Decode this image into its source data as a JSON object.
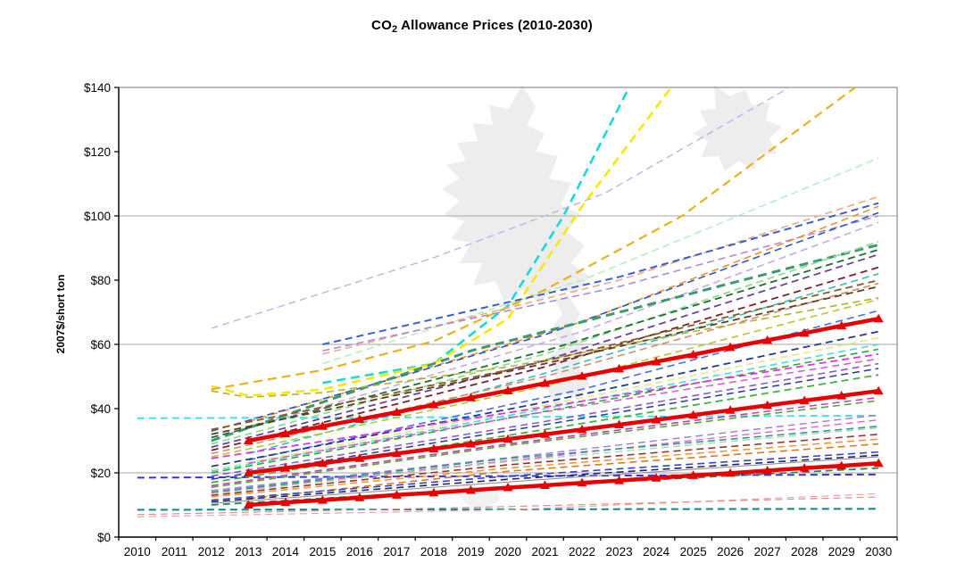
{
  "page": {
    "top_band_color": "#F1F0EA",
    "background": "#FFFFFF"
  },
  "chart_data": {
    "type": "line",
    "title": "CO2 Allowance Prices (2010-2030)",
    "title_parts": {
      "pre": "CO",
      "sub": "2",
      "post": " Allowance Prices (2010-2030)"
    },
    "ylabel": "2007$/short ton",
    "xlabel": "",
    "ylim": [
      0,
      140
    ],
    "y_ticks": [
      {
        "label": "$0",
        "value": 0
      },
      {
        "label": "$20",
        "value": 20
      },
      {
        "label": "$40",
        "value": 40
      },
      {
        "label": "$60",
        "value": 60
      },
      {
        "label": "$80",
        "value": 80
      },
      {
        "label": "$100",
        "value": 100
      },
      {
        "label": "$120",
        "value": 120
      },
      {
        "label": "$140",
        "value": 140
      }
    ],
    "x_ticks": [
      2010,
      2011,
      2012,
      2013,
      2014,
      2015,
      2016,
      2017,
      2018,
      2019,
      2020,
      2021,
      2022,
      2023,
      2024,
      2025,
      2026,
      2027,
      2028,
      2029,
      2030
    ],
    "gridlines": [
      20,
      60,
      100
    ],
    "grid_color": "#A6A6A6",
    "border_color": "#8C8C8C",
    "axis_color": "#000000",
    "highlight_color": "#E80000",
    "legend": "none",
    "highlight_series": [
      {
        "name": "red-top",
        "color": "#E80000",
        "width": 4.5,
        "marker": "triangle",
        "points": [
          [
            2013,
            30
          ],
          [
            2014,
            32.2
          ],
          [
            2015,
            34.5
          ],
          [
            2016,
            36.7
          ],
          [
            2017,
            38.9
          ],
          [
            2018,
            41.2
          ],
          [
            2019,
            43.4
          ],
          [
            2020,
            45.6
          ],
          [
            2021,
            47.9
          ],
          [
            2022,
            50.1
          ],
          [
            2023,
            52.4
          ],
          [
            2024,
            54.6
          ],
          [
            2025,
            56.8
          ],
          [
            2026,
            59.1
          ],
          [
            2027,
            61.3
          ],
          [
            2028,
            63.5
          ],
          [
            2029,
            65.8
          ],
          [
            2030,
            68
          ]
        ]
      },
      {
        "name": "red-middle",
        "color": "#E80000",
        "width": 4.5,
        "marker": "triangle",
        "points": [
          [
            2013,
            20
          ],
          [
            2014,
            21.5
          ],
          [
            2015,
            23
          ],
          [
            2016,
            24.5
          ],
          [
            2017,
            26
          ],
          [
            2018,
            27.5
          ],
          [
            2019,
            29
          ],
          [
            2020,
            30.5
          ],
          [
            2021,
            32
          ],
          [
            2022,
            33.5
          ],
          [
            2023,
            35
          ],
          [
            2024,
            36.5
          ],
          [
            2025,
            38
          ],
          [
            2026,
            39.5
          ],
          [
            2027,
            41
          ],
          [
            2028,
            42.5
          ],
          [
            2029,
            44
          ],
          [
            2030,
            45.5
          ]
        ]
      },
      {
        "name": "red-bottom",
        "color": "#E80000",
        "width": 4.5,
        "marker": "triangle",
        "points": [
          [
            2013,
            10
          ],
          [
            2014,
            10.8
          ],
          [
            2015,
            11.5
          ],
          [
            2016,
            12.3
          ],
          [
            2017,
            13.1
          ],
          [
            2018,
            13.8
          ],
          [
            2019,
            14.6
          ],
          [
            2020,
            15.4
          ],
          [
            2021,
            16.1
          ],
          [
            2022,
            16.9
          ],
          [
            2023,
            17.6
          ],
          [
            2024,
            18.4
          ],
          [
            2025,
            19.2
          ],
          [
            2026,
            19.9
          ],
          [
            2027,
            20.7
          ],
          [
            2028,
            21.5
          ],
          [
            2029,
            22.2
          ],
          [
            2030,
            23
          ]
        ]
      }
    ],
    "series": [
      {
        "color": "#44DDEE",
        "width": 2,
        "points": [
          [
            2010,
            37
          ],
          [
            2030,
            37.8
          ]
        ]
      },
      {
        "color": "#3333EE",
        "width": 2,
        "points": [
          [
            2010,
            18.5
          ],
          [
            2030,
            19.5
          ]
        ]
      },
      {
        "color": "#00898F",
        "width": 2,
        "points": [
          [
            2010,
            8.5
          ],
          [
            2030,
            8.8
          ]
        ]
      },
      {
        "color": "#EE9DB5",
        "width": 1.2,
        "points": [
          [
            2010,
            6.3
          ],
          [
            2020,
            8.5
          ],
          [
            2030,
            13.5
          ]
        ]
      },
      {
        "color": "#E09080",
        "width": 1.2,
        "points": [
          [
            2010,
            7
          ],
          [
            2020,
            9.5
          ],
          [
            2030,
            12.5
          ]
        ]
      },
      {
        "color": "#18D8D8",
        "width": 2.6,
        "points": [
          [
            2015,
            48
          ],
          [
            2018,
            54
          ],
          [
            2020,
            72
          ],
          [
            2021.5,
            100
          ],
          [
            2023.4,
            143
          ]
        ]
      },
      {
        "color": "#F8E800",
        "width": 2.6,
        "points": [
          [
            2012,
            47
          ],
          [
            2013,
            44
          ],
          [
            2015,
            46
          ],
          [
            2018,
            54
          ],
          [
            2020,
            68
          ],
          [
            2022,
            103
          ],
          [
            2024.6,
            143
          ]
        ]
      },
      {
        "color": "#E6B31E",
        "width": 2.2,
        "points": [
          [
            2012,
            46
          ],
          [
            2015,
            52
          ],
          [
            2018,
            61
          ],
          [
            2021,
            77
          ],
          [
            2024.7,
            100
          ],
          [
            2029.6,
            142
          ]
        ]
      },
      {
        "color": "#BFB2EC",
        "width": 1.4,
        "points": [
          [
            2012,
            65
          ],
          [
            2018,
            87
          ],
          [
            2022.6,
            107
          ],
          [
            2027.9,
            142
          ]
        ]
      },
      {
        "color": "#A8F0B8",
        "width": 1.4,
        "points": [
          [
            2015,
            54
          ],
          [
            2022,
            80
          ],
          [
            2030,
            118
          ]
        ]
      },
      {
        "color": "#F0A880",
        "width": 1.6,
        "points": [
          [
            2015,
            57
          ],
          [
            2023,
            80
          ],
          [
            2030,
            106
          ]
        ]
      },
      {
        "color": "#3A5FD0",
        "width": 2,
        "points": [
          [
            2015,
            60
          ],
          [
            2023,
            81
          ],
          [
            2030,
            104
          ]
        ]
      },
      {
        "color": "#A98BDB",
        "width": 1.6,
        "points": [
          [
            2015,
            58
          ],
          [
            2023,
            78
          ],
          [
            2030,
            100
          ]
        ]
      },
      {
        "color": "#F09030",
        "width": 1.6,
        "points": [
          [
            2013,
            36
          ],
          [
            2022,
            67
          ],
          [
            2030,
            103
          ]
        ]
      },
      {
        "color": "#2F55CC",
        "width": 1.6,
        "points": [
          [
            2012,
            33
          ],
          [
            2021,
            63
          ],
          [
            2030,
            101
          ]
        ]
      },
      {
        "color": "#C9A8E8",
        "width": 1.6,
        "points": [
          [
            2013,
            34
          ],
          [
            2022,
            64
          ],
          [
            2030,
            98
          ]
        ]
      },
      {
        "color": "#3D9970",
        "width": 3,
        "points": [
          [
            2012,
            30
          ],
          [
            2019,
            58
          ],
          [
            2025,
            76
          ],
          [
            2030,
            91
          ]
        ]
      },
      {
        "color": "#8CDD8C",
        "width": 1.8,
        "points": [
          [
            2012,
            29
          ],
          [
            2021,
            57
          ],
          [
            2030,
            92
          ]
        ]
      },
      {
        "color": "#1E6B3C",
        "width": 1.8,
        "points": [
          [
            2012,
            31
          ],
          [
            2021,
            58
          ],
          [
            2030,
            89.5
          ]
        ]
      },
      {
        "color": "#6B3FA0",
        "width": 1.8,
        "points": [
          [
            2012,
            28
          ],
          [
            2021,
            55
          ],
          [
            2030,
            88
          ]
        ]
      },
      {
        "color": "#7A1F2B",
        "width": 1.8,
        "points": [
          [
            2012,
            27
          ],
          [
            2021,
            53
          ],
          [
            2030,
            84
          ]
        ]
      },
      {
        "color": "#2FBFBF",
        "width": 1.6,
        "points": [
          [
            2013,
            26
          ],
          [
            2021,
            51
          ],
          [
            2030,
            82
          ]
        ]
      },
      {
        "color": "#D98A66",
        "width": 1.6,
        "points": [
          [
            2012,
            26
          ],
          [
            2021,
            50
          ],
          [
            2030,
            79
          ]
        ]
      },
      {
        "color": "#5C4022",
        "width": 1.8,
        "points": [
          [
            2012,
            32
          ],
          [
            2021,
            54
          ],
          [
            2030,
            78
          ]
        ]
      },
      {
        "color": "#B5C832",
        "width": 1.6,
        "points": [
          [
            2012,
            25
          ],
          [
            2021,
            47
          ],
          [
            2030,
            74
          ]
        ]
      },
      {
        "color": "#4A6FE8",
        "width": 1.6,
        "points": [
          [
            2013,
            24
          ],
          [
            2022,
            46
          ],
          [
            2030,
            70.5
          ]
        ]
      },
      {
        "color": "#B2B232",
        "width": 1.6,
        "points": [
          [
            2012,
            45.5
          ],
          [
            2013,
            43.5
          ],
          [
            2015,
            45
          ],
          [
            2020,
            53
          ],
          [
            2025,
            64
          ],
          [
            2030,
            74.5
          ]
        ]
      },
      {
        "color": "#8A5A22",
        "width": 1.8,
        "points": [
          [
            2012,
            33.5
          ],
          [
            2020,
            52
          ],
          [
            2030,
            80
          ]
        ]
      },
      {
        "color": "#1F3A8F",
        "width": 1.8,
        "points": [
          [
            2012,
            22
          ],
          [
            2021,
            42
          ],
          [
            2030,
            64
          ]
        ]
      },
      {
        "color": "#EDE88A",
        "width": 1.8,
        "points": [
          [
            2012,
            21
          ],
          [
            2021,
            41
          ],
          [
            2030,
            62
          ]
        ]
      },
      {
        "color": "#4FD8E0",
        "width": 1.6,
        "points": [
          [
            2012,
            20.5
          ],
          [
            2021,
            40
          ],
          [
            2030,
            60
          ]
        ]
      },
      {
        "color": "#2FA82F",
        "width": 1.6,
        "points": [
          [
            2012,
            20
          ],
          [
            2020,
            37
          ],
          [
            2030,
            58.5
          ]
        ]
      },
      {
        "color": "#E82FE8",
        "width": 1.8,
        "points": [
          [
            2012,
            24.5
          ],
          [
            2021,
            40.5
          ],
          [
            2030,
            57
          ]
        ]
      },
      {
        "color": "#D863C8",
        "width": 1.6,
        "points": [
          [
            2013,
            23
          ],
          [
            2021,
            39
          ],
          [
            2030,
            55.5
          ]
        ]
      },
      {
        "color": "#8A5BC8",
        "width": 1.6,
        "points": [
          [
            2012,
            19
          ],
          [
            2021,
            36
          ],
          [
            2030,
            54
          ]
        ]
      },
      {
        "color": "#2F4499",
        "width": 1.6,
        "points": [
          [
            2012,
            18
          ],
          [
            2021,
            35
          ],
          [
            2030,
            52.5
          ]
        ]
      },
      {
        "color": "#3FB23F",
        "width": 1.8,
        "points": [
          [
            2012,
            17
          ],
          [
            2021,
            33.5
          ],
          [
            2030,
            50.5
          ]
        ]
      },
      {
        "color": "#9B7BD6",
        "width": 1.4,
        "points": [
          [
            2012,
            14.5
          ],
          [
            2021,
            26
          ],
          [
            2030,
            38
          ]
        ]
      },
      {
        "color": "#E85FC2",
        "width": 1.4,
        "points": [
          [
            2012,
            13.8
          ],
          [
            2021,
            25
          ],
          [
            2030,
            36.5
          ]
        ]
      },
      {
        "color": "#C23FB2",
        "width": 1.6,
        "points": [
          [
            2012,
            16
          ],
          [
            2020,
            29
          ],
          [
            2030,
            43.5
          ]
        ]
      },
      {
        "color": "#55AA33",
        "width": 1.6,
        "points": [
          [
            2012,
            15.5
          ],
          [
            2020,
            28.5
          ],
          [
            2030,
            42.5
          ]
        ]
      },
      {
        "color": "#2F9999",
        "width": 1.6,
        "points": [
          [
            2012,
            14
          ],
          [
            2020,
            24.5
          ],
          [
            2030,
            34.5
          ]
        ]
      },
      {
        "color": "#A8D8A8",
        "width": 1.4,
        "points": [
          [
            2012,
            13.5
          ],
          [
            2020,
            23.5
          ],
          [
            2030,
            34
          ]
        ]
      },
      {
        "color": "#993333",
        "width": 1.6,
        "points": [
          [
            2012,
            13
          ],
          [
            2020,
            22.5
          ],
          [
            2030,
            32
          ]
        ]
      },
      {
        "color": "#EE9933",
        "width": 1.6,
        "points": [
          [
            2012,
            12.5
          ],
          [
            2020,
            21.5
          ],
          [
            2030,
            30.5
          ]
        ]
      },
      {
        "color": "#DD7722",
        "width": 1.6,
        "points": [
          [
            2013,
            12
          ],
          [
            2020,
            20.5
          ],
          [
            2030,
            29
          ]
        ]
      },
      {
        "color": "#3344CC",
        "width": 1.6,
        "points": [
          [
            2012,
            11.5
          ],
          [
            2020,
            19
          ],
          [
            2030,
            26.5
          ]
        ]
      },
      {
        "color": "#222266",
        "width": 1.6,
        "points": [
          [
            2012,
            11
          ],
          [
            2020,
            18
          ],
          [
            2030,
            25.5
          ]
        ]
      },
      {
        "color": "#888888",
        "width": 1,
        "dash": "solid",
        "points": [
          [
            2012,
            10.5
          ],
          [
            2021,
            18
          ],
          [
            2030,
            25
          ]
        ]
      },
      {
        "color": "#2F8855",
        "width": 1.8,
        "points": [
          [
            2012,
            10
          ],
          [
            2020,
            15.5
          ],
          [
            2030,
            21.5
          ]
        ]
      }
    ]
  }
}
